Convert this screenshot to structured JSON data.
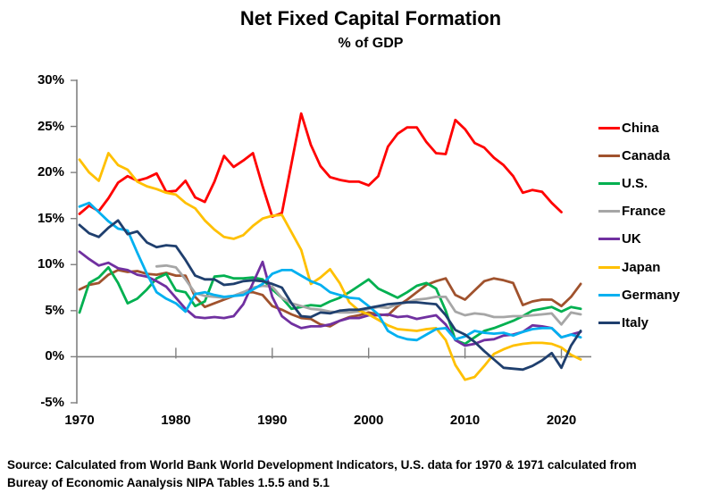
{
  "title": "Net Fixed Capital Formation",
  "subtitle": "% of GDP",
  "source_lines": [
    "Source:  Calculated from World Bank World Development Indicators, U.S. data for 1970 & 1971 calculated from",
    "Bureay of Economic Aanalysis NIPA Tables 1.5.5 and 5.1"
  ],
  "colors": {
    "axis": "#808080",
    "text": "#000000",
    "background": "#ffffff"
  },
  "chart_data": {
    "type": "line",
    "title": "Net Fixed Capital Formation",
    "subtitle": "% of GDP",
    "xlabel": "",
    "ylabel": "% of GDP",
    "grid": "zero-line-only",
    "legend_position": "right",
    "x_axis": {
      "min": 1970,
      "max": 2022,
      "ticks": [
        1970,
        1980,
        1990,
        2000,
        2010,
        2020
      ]
    },
    "y_axis": {
      "min": -5,
      "max": 30,
      "ticks": [
        30,
        25,
        20,
        15,
        10,
        5,
        0,
        -5
      ],
      "tick_suffix": "%"
    },
    "series": [
      {
        "name": "China",
        "color": "#FF0000",
        "start_year": 1970,
        "values": [
          15.5,
          16.4,
          15.8,
          17.2,
          18.9,
          19.6,
          19.1,
          19.4,
          19.9,
          17.9,
          18.0,
          19.1,
          17.3,
          16.8,
          19.0,
          21.8,
          20.6,
          21.3,
          22.1,
          18.5,
          15.2,
          15.6,
          21.0,
          26.4,
          23.0,
          20.7,
          19.5,
          19.2,
          19.0,
          19.0,
          18.6,
          19.6,
          22.8,
          24.2,
          24.9,
          24.9,
          23.3,
          22.1,
          22.0,
          25.7,
          24.7,
          23.2,
          22.7,
          21.6,
          20.8,
          19.6,
          17.8,
          18.1,
          17.9,
          16.7,
          15.7
        ]
      },
      {
        "name": "Canada",
        "color": "#A0522D",
        "start_year": 1970,
        "values": [
          7.3,
          7.8,
          8.0,
          8.9,
          9.4,
          9.2,
          9.3,
          9.0,
          8.9,
          9.1,
          8.8,
          8.8,
          6.5,
          5.4,
          5.8,
          6.2,
          6.6,
          7.0,
          7.0,
          6.7,
          5.5,
          5.1,
          4.6,
          4.2,
          4.1,
          3.5,
          3.3,
          3.9,
          4.3,
          4.5,
          4.8,
          4.6,
          4.5,
          5.5,
          6.2,
          7.0,
          7.8,
          8.2,
          8.5,
          6.7,
          6.2,
          7.2,
          8.2,
          8.5,
          8.3,
          8.0,
          5.6,
          6.0,
          6.2,
          6.2,
          5.5,
          6.5,
          7.9
        ]
      },
      {
        "name": "U.S.",
        "color": "#00B050",
        "start_year": 1970,
        "values": [
          4.8,
          8.0,
          8.6,
          9.7,
          8.0,
          5.8,
          6.3,
          7.3,
          8.5,
          9.0,
          7.2,
          7.0,
          5.5,
          6.0,
          8.7,
          8.8,
          8.5,
          8.5,
          8.6,
          8.4,
          7.3,
          6.4,
          5.2,
          5.4,
          5.6,
          5.5,
          6.0,
          6.4,
          7.0,
          7.7,
          8.4,
          7.4,
          6.9,
          6.4,
          7.0,
          7.7,
          8.0,
          7.4,
          5.0,
          1.8,
          1.4,
          2.1,
          2.8,
          3.1,
          3.5,
          3.9,
          4.4,
          5.0,
          5.2,
          5.4,
          4.9,
          5.4,
          5.2
        ]
      },
      {
        "name": "France",
        "color": "#A6A6A6",
        "start_year": 1978,
        "values": [
          9.8,
          9.9,
          9.7,
          8.4,
          6.9,
          6.6,
          6.5,
          6.4,
          6.6,
          7.0,
          7.5,
          7.7,
          7.6,
          6.4,
          5.8,
          5.5,
          5.2,
          5.1,
          4.9,
          4.8,
          4.8,
          4.9,
          5.2,
          5.4,
          5.3,
          5.7,
          5.9,
          6.2,
          6.3,
          6.5,
          6.5,
          4.9,
          4.5,
          4.7,
          4.6,
          4.3,
          4.3,
          4.4,
          4.4,
          4.5,
          4.6,
          4.7,
          3.5,
          4.8,
          4.6
        ]
      },
      {
        "name": "UK",
        "color": "#7030A0",
        "start_year": 1970,
        "values": [
          11.4,
          10.6,
          9.9,
          10.2,
          9.6,
          9.4,
          8.9,
          8.7,
          8.2,
          7.6,
          6.4,
          5.2,
          4.3,
          4.2,
          4.3,
          4.2,
          4.4,
          5.7,
          8.0,
          10.3,
          6.5,
          4.4,
          3.6,
          3.1,
          3.3,
          3.3,
          3.5,
          3.9,
          4.2,
          4.2,
          4.5,
          4.5,
          4.6,
          4.3,
          4.4,
          4.1,
          4.3,
          4.5,
          3.5,
          1.8,
          1.2,
          1.4,
          1.8,
          1.9,
          2.3,
          2.4,
          2.7,
          3.4,
          3.3,
          3.1,
          2.1,
          2.4,
          2.7
        ]
      },
      {
        "name": "Japan",
        "color": "#FFC000",
        "start_year": 1970,
        "values": [
          21.4,
          20.0,
          19.1,
          22.1,
          20.8,
          20.3,
          19.0,
          18.5,
          18.2,
          17.8,
          17.6,
          16.7,
          16.1,
          14.8,
          13.8,
          13.0,
          12.8,
          13.2,
          14.2,
          15.0,
          15.3,
          15.4,
          13.5,
          11.6,
          7.9,
          8.6,
          9.5,
          8.0,
          5.9,
          5.0,
          4.6,
          4.0,
          3.4,
          3.0,
          2.9,
          2.8,
          3.0,
          3.1,
          1.8,
          -0.9,
          -2.5,
          -2.2,
          -1.0,
          0.3,
          0.8,
          1.2,
          1.4,
          1.5,
          1.5,
          1.4,
          1.0,
          0.2,
          -0.3
        ]
      },
      {
        "name": "Germany",
        "color": "#00B0F0",
        "start_year": 1970,
        "values": [
          16.3,
          16.7,
          15.7,
          14.7,
          13.9,
          13.7,
          11.3,
          9.0,
          7.0,
          6.3,
          5.8,
          4.9,
          6.8,
          7.0,
          6.7,
          6.5,
          6.6,
          6.7,
          7.3,
          7.9,
          9.0,
          9.4,
          9.4,
          8.8,
          8.2,
          7.8,
          7.0,
          6.7,
          6.4,
          6.3,
          5.5,
          4.6,
          2.8,
          2.2,
          1.9,
          1.8,
          2.4,
          3.0,
          3.1,
          1.9,
          2.2,
          2.8,
          2.6,
          2.5,
          2.6,
          2.3,
          2.7,
          3.0,
          3.1,
          3.1,
          2.1,
          2.4,
          2.1
        ]
      },
      {
        "name": "Italy",
        "color": "#1F3F6E",
        "start_year": 1970,
        "values": [
          14.3,
          13.4,
          13.0,
          14.0,
          14.8,
          13.3,
          13.6,
          12.4,
          11.9,
          12.1,
          12.0,
          10.5,
          8.8,
          8.4,
          8.4,
          7.8,
          7.9,
          8.2,
          8.3,
          8.2,
          7.9,
          7.5,
          5.8,
          4.4,
          4.3,
          4.8,
          4.7,
          5.0,
          5.1,
          5.1,
          5.3,
          5.5,
          5.7,
          5.8,
          5.9,
          5.9,
          5.8,
          5.7,
          4.5,
          2.9,
          2.4,
          1.6,
          0.6,
          -0.3,
          -1.2,
          -1.3,
          -1.4,
          -1.0,
          -0.4,
          0.4,
          -1.2,
          1.2,
          2.8
        ]
      }
    ]
  }
}
